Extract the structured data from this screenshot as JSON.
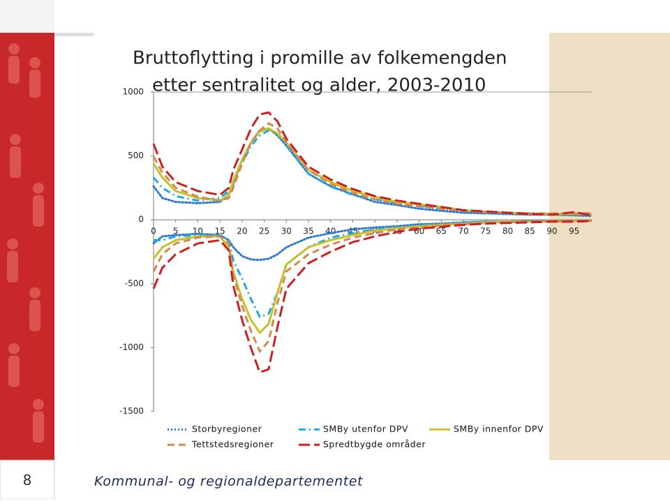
{
  "chart_data": {
    "type": "line",
    "title": "Bruttoflytting i promille av folkemengden",
    "subtitle": "etter sentralitet og alder, 2003-2010",
    "x": [
      0,
      2,
      5,
      10,
      15,
      17,
      18,
      20,
      22,
      24,
      26,
      28,
      30,
      35,
      40,
      45,
      50,
      55,
      60,
      65,
      70,
      75,
      80,
      85,
      90,
      95,
      99
    ],
    "xlim": [
      0,
      99
    ],
    "xticks": [
      0,
      5,
      10,
      15,
      20,
      25,
      30,
      35,
      40,
      45,
      50,
      55,
      60,
      65,
      70,
      75,
      80,
      85,
      90,
      95
    ],
    "ylim": [
      -1500,
      1000
    ],
    "yticks": [
      1000,
      500,
      0,
      -500,
      -1000,
      -1500
    ],
    "series": [
      {
        "name": "Storbyregioner",
        "color": "#2a78d0",
        "dash": "2,3",
        "values": [
          262,
          170,
          140,
          130,
          140,
          200,
          280,
          470,
          605,
          700,
          715,
          660,
          580,
          360,
          262,
          200,
          140,
          115,
          87,
          70,
          55,
          50,
          45,
          40,
          40,
          35,
          30
        ],
        "out_values": [
          -185,
          -130,
          -120,
          -110,
          -120,
          -160,
          -215,
          -285,
          -310,
          -315,
          -305,
          -270,
          -215,
          -140,
          -105,
          -75,
          -60,
          -50,
          -35,
          -30,
          -20,
          -15,
          -15,
          -10,
          -10,
          -10,
          -10
        ]
      },
      {
        "name": "SMBy utenfor DPV",
        "color": "#22a6e0",
        "dash": "10,5,2,5",
        "values": [
          330,
          250,
          185,
          150,
          170,
          225,
          295,
          440,
          580,
          660,
          700,
          670,
          580,
          360,
          260,
          195,
          160,
          130,
          110,
          87,
          70,
          60,
          55,
          50,
          45,
          45,
          45
        ],
        "out_values": [
          -160,
          -160,
          -130,
          -120,
          -120,
          -160,
          -320,
          -460,
          -620,
          -760,
          -735,
          -570,
          -350,
          -215,
          -140,
          -105,
          -75,
          -60,
          -45,
          -35,
          -20,
          -15,
          -15,
          -10,
          -10,
          -10,
          -10
        ]
      },
      {
        "name": "SMBy innenfor DPV",
        "color": "#c8c02a",
        "dash": "none",
        "values": [
          440,
          330,
          225,
          170,
          150,
          195,
          305,
          470,
          605,
          690,
          715,
          675,
          605,
          390,
          295,
          225,
          180,
          140,
          120,
          100,
          75,
          65,
          55,
          50,
          45,
          45,
          45
        ],
        "out_values": [
          -305,
          -215,
          -160,
          -130,
          -130,
          -215,
          -405,
          -620,
          -785,
          -885,
          -815,
          -570,
          -350,
          -215,
          -160,
          -120,
          -85,
          -65,
          -50,
          -40,
          -30,
          -20,
          -15,
          -15,
          -10,
          -10,
          -10
        ]
      },
      {
        "name": "Tettstedsregioner",
        "color": "#d4884a",
        "dash": "10,6",
        "values": [
          495,
          370,
          250,
          180,
          150,
          170,
          250,
          440,
          605,
          700,
          755,
          715,
          605,
          390,
          280,
          210,
          160,
          125,
          105,
          87,
          70,
          60,
          55,
          50,
          50,
          50,
          50
        ],
        "out_values": [
          -405,
          -270,
          -185,
          -140,
          -130,
          -185,
          -430,
          -675,
          -870,
          -1030,
          -950,
          -650,
          -405,
          -270,
          -195,
          -140,
          -105,
          -75,
          -60,
          -45,
          -35,
          -25,
          -20,
          -15,
          -15,
          -10,
          -10
        ]
      },
      {
        "name": "Spredtbygde områder",
        "color": "#cc1f1f",
        "dash": "16,6",
        "values": [
          595,
          415,
          295,
          225,
          195,
          250,
          390,
          550,
          715,
          825,
          840,
          770,
          635,
          415,
          315,
          240,
          185,
          150,
          125,
          100,
          75,
          65,
          55,
          45,
          40,
          60,
          35
        ],
        "out_values": [
          -540,
          -375,
          -270,
          -185,
          -160,
          -240,
          -515,
          -785,
          -1005,
          -1195,
          -1170,
          -840,
          -540,
          -340,
          -250,
          -175,
          -130,
          -95,
          -70,
          -55,
          -40,
          -30,
          -25,
          -20,
          -15,
          -15,
          -10
        ]
      }
    ]
  },
  "footer": "Kommunal- og regionaldepartementet",
  "page_number": "8"
}
